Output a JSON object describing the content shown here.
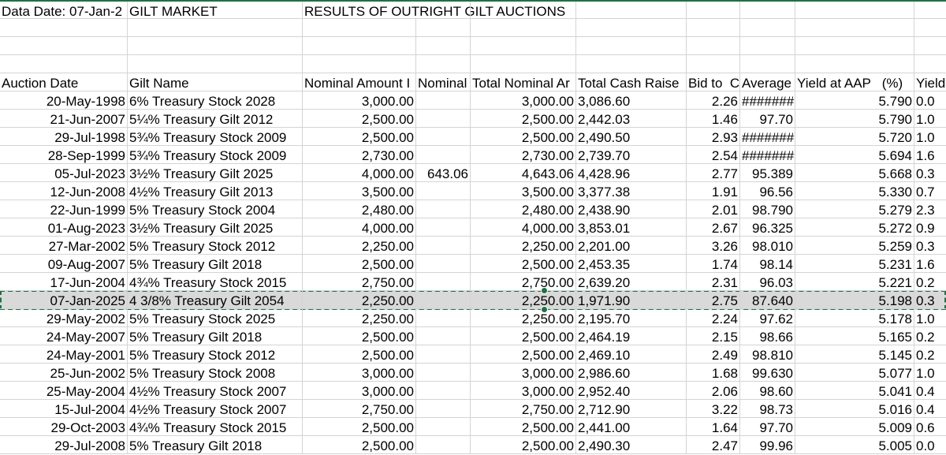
{
  "sheet": {
    "top_row": [
      "Data Date: 07-Jan-2",
      "GILT MARKET",
      "RESULTS OF OUTRIGHT GILT AUCTIONS"
    ],
    "header": [
      "Auction Date",
      "Gilt Name",
      "Nominal Amount I",
      "Nominal",
      "Total Nominal Ar",
      "Total Cash Raise",
      "Bid to  C",
      "Average",
      "Yield at AAP   (%)",
      "Yield"
    ],
    "selected_row": 11,
    "rows": [
      [
        "20-May-1998",
        "6% Treasury Stock 2028",
        "3,000.00",
        null,
        "3,000.00",
        "3,086.60",
        "2.26",
        "#######",
        "5.790",
        "0.0"
      ],
      [
        "21-Jun-2007",
        "5¼% Treasury Gilt 2012",
        "2,500.00",
        null,
        "2,500.00",
        "2,442.03",
        "1.46",
        "97.70",
        "5.790",
        "1.0"
      ],
      [
        "29-Jul-1998",
        "5¾% Treasury Stock 2009",
        "2,500.00",
        null,
        "2,500.00",
        "2,490.50",
        "2.93",
        "#######",
        "5.720",
        "1.0"
      ],
      [
        "28-Sep-1999",
        "5¾% Treasury Stock 2009",
        "2,730.00",
        null,
        "2,730.00",
        "2,739.70",
        "2.54",
        "#######",
        "5.694",
        "1.6"
      ],
      [
        "05-Jul-2023",
        "3½% Treasury Gilt 2025",
        "4,000.00",
        "643.06",
        "4,643.06",
        "4,428.96",
        "2.77",
        "95.389",
        "5.668",
        "0.3"
      ],
      [
        "12-Jun-2008",
        "4½% Treasury Gilt 2013",
        "3,500.00",
        null,
        "3,500.00",
        "3,377.38",
        "1.91",
        "96.56",
        "5.330",
        "0.7"
      ],
      [
        "22-Jun-1999",
        "5% Treasury Stock 2004",
        "2,480.00",
        null,
        "2,480.00",
        "2,438.90",
        "2.01",
        "98.790",
        "5.279",
        "2.3"
      ],
      [
        "01-Aug-2023",
        "3½% Treasury Gilt 2025",
        "4,000.00",
        null,
        "4,000.00",
        "3,853.01",
        "2.67",
        "96.325",
        "5.272",
        "0.9"
      ],
      [
        "27-Mar-2002",
        "5% Treasury Stock 2012",
        "2,250.00",
        null,
        "2,250.00",
        "2,201.00",
        "3.26",
        "98.010",
        "5.259",
        "0.3"
      ],
      [
        "09-Aug-2007",
        "5% Treasury Gilt 2018",
        "2,500.00",
        null,
        "2,500.00",
        "2,453.35",
        "1.74",
        "98.14",
        "5.231",
        "1.6"
      ],
      [
        "17-Jun-2004",
        "4¾% Treasury Stock 2015",
        "2,750.00",
        null,
        "2,750.00",
        "2,639.20",
        "2.31",
        "96.03",
        "5.221",
        "0.2"
      ],
      [
        "07-Jan-2025",
        "4 3/8% Treasury Gilt 2054",
        "2,250.00",
        null,
        "2,250.00",
        "1,971.90",
        "2.75",
        "87.640",
        "5.198",
        "0.3"
      ],
      [
        "29-May-2002",
        "5% Treasury Stock 2025",
        "2,250.00",
        null,
        "2,250.00",
        "2,195.70",
        "2.24",
        "97.62",
        "5.178",
        "1.0"
      ],
      [
        "24-May-2007",
        "5% Treasury Gilt 2018",
        "2,500.00",
        null,
        "2,500.00",
        "2,464.19",
        "2.15",
        "98.66",
        "5.165",
        "0.2"
      ],
      [
        "24-May-2001",
        "5% Treasury Stock 2012",
        "2,500.00",
        null,
        "2,500.00",
        "2,469.10",
        "2.49",
        "98.810",
        "5.145",
        "0.2"
      ],
      [
        "25-Jun-2002",
        "5% Treasury Stock 2008",
        "3,000.00",
        null,
        "3,000.00",
        "2,986.60",
        "1.68",
        "99.630",
        "5.077",
        "1.0"
      ],
      [
        "25-May-2004",
        "4½% Treasury Stock 2007",
        "3,000.00",
        null,
        "3,000.00",
        "2,952.40",
        "2.06",
        "98.60",
        "5.041",
        "0.4"
      ],
      [
        "15-Jul-2004",
        "4½% Treasury Stock 2007",
        "2,750.00",
        null,
        "2,750.00",
        "2,712.90",
        "3.22",
        "98.73",
        "5.016",
        "0.4"
      ],
      [
        "29-Oct-2003",
        "4¾% Treasury Stock 2015",
        "2,500.00",
        null,
        "2,500.00",
        "2,441.00",
        "1.64",
        "97.70",
        "5.009",
        "0.6"
      ],
      [
        "29-Jul-2008",
        "5% Treasury Gilt 2018",
        "2,500.00",
        null,
        "2,500.00",
        "2,490.30",
        "2.47",
        "99.96",
        "5.005",
        "0.0"
      ]
    ]
  }
}
